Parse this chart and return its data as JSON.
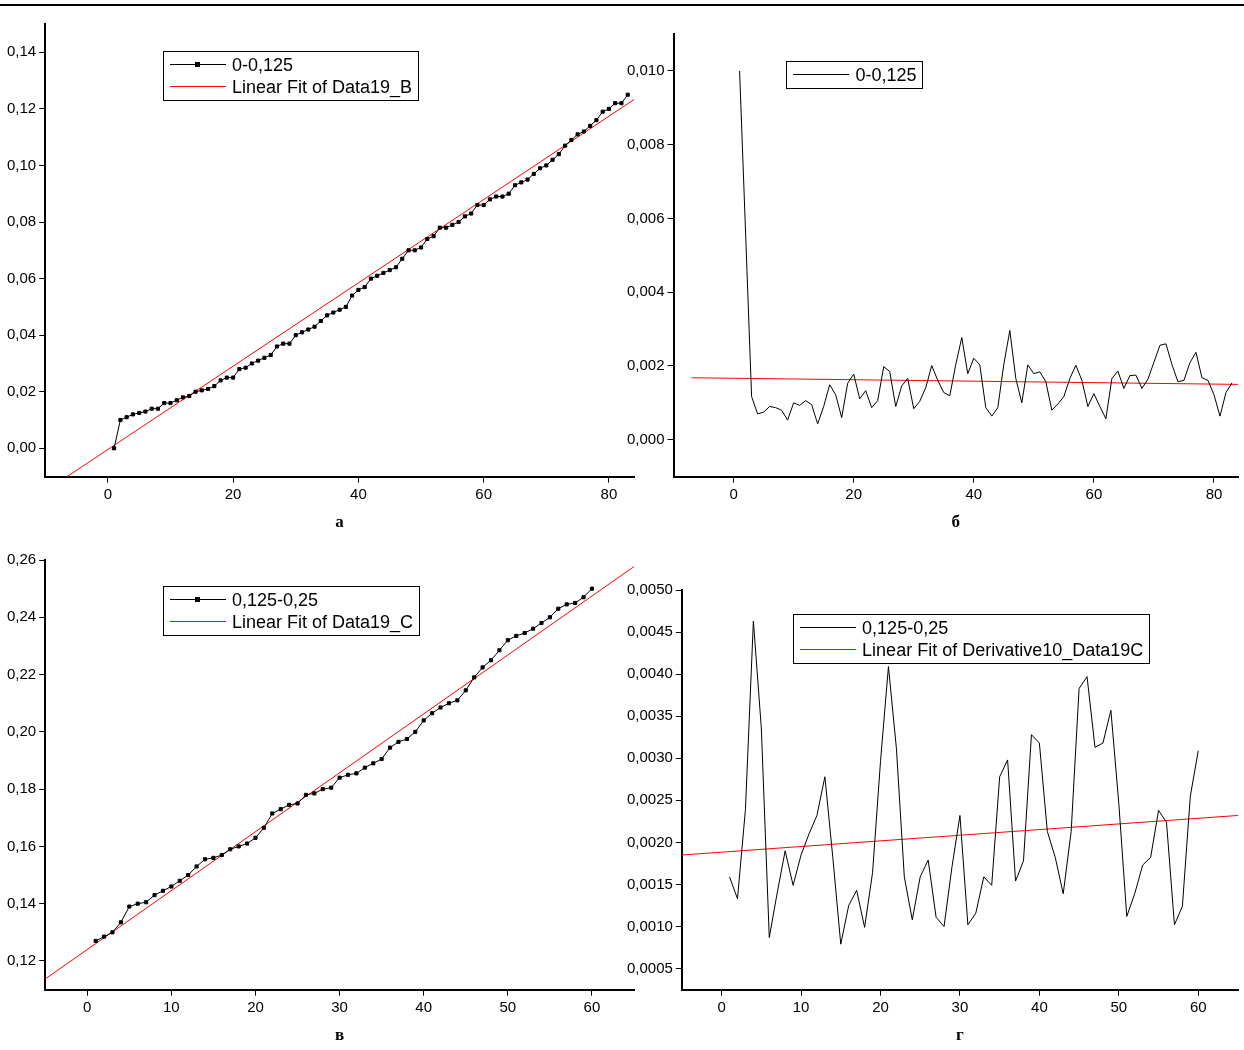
{
  "chart_data": [
    {
      "type": "line",
      "xlabel": "а",
      "xlim": [
        -10,
        84
      ],
      "xticks": [
        0,
        20,
        40,
        60,
        80
      ],
      "ylim": [
        -0.01,
        0.15
      ],
      "yticks": [
        {
          "value": 0,
          "label": "0,00"
        },
        {
          "value": 0.02,
          "label": "0,02"
        },
        {
          "value": 0.04,
          "label": "0,04"
        },
        {
          "value": 0.06,
          "label": "0,06"
        },
        {
          "value": 0.08,
          "label": "0,08"
        },
        {
          "value": 0.1,
          "label": "0,10"
        },
        {
          "value": 0.12,
          "label": "0,12"
        },
        {
          "value": 0.14,
          "label": "0,14"
        }
      ],
      "grid": false,
      "legend": "top left",
      "line_style": "solid",
      "series": [
        {
          "name": "0-0,125",
          "color": "#000000",
          "marker": "square",
          "x": [
            1,
            2,
            3,
            4,
            5,
            6,
            7,
            8,
            9,
            10,
            11,
            12,
            13,
            14,
            15,
            16,
            17,
            18,
            19,
            20,
            21,
            22,
            23,
            24,
            25,
            26,
            27,
            28,
            29,
            30,
            31,
            32,
            33,
            34,
            35,
            36,
            37,
            38,
            39,
            40,
            41,
            42,
            43,
            44,
            45,
            46,
            47,
            48,
            49,
            50,
            51,
            52,
            53,
            54,
            55,
            56,
            57,
            58,
            59,
            60,
            61,
            62,
            63,
            64,
            65,
            66,
            67,
            68,
            69,
            70,
            71,
            72,
            73,
            74,
            75,
            76,
            77,
            78,
            79,
            80,
            81,
            82,
            83
          ],
          "values": [
            0.0,
            0.01,
            0.011,
            0.012,
            0.0125,
            0.013,
            0.014,
            0.014,
            0.016,
            0.016,
            0.017,
            0.018,
            0.0185,
            0.02,
            0.0205,
            0.021,
            0.022,
            0.024,
            0.025,
            0.025,
            0.028,
            0.0285,
            0.03,
            0.031,
            0.032,
            0.033,
            0.036,
            0.037,
            0.037,
            0.04,
            0.041,
            0.042,
            0.043,
            0.045,
            0.047,
            0.048,
            0.049,
            0.05,
            0.054,
            0.056,
            0.057,
            0.06,
            0.061,
            0.062,
            0.063,
            0.064,
            0.067,
            0.07,
            0.07,
            0.071,
            0.074,
            0.075,
            0.078,
            0.078,
            0.079,
            0.08,
            0.082,
            0.083,
            0.086,
            0.086,
            0.088,
            0.089,
            0.089,
            0.09,
            0.093,
            0.094,
            0.095,
            0.097,
            0.099,
            0.1,
            0.102,
            0.104,
            0.107,
            0.109,
            0.111,
            0.112,
            0.114,
            0.116,
            0.119,
            0.12,
            0.122,
            0.122,
            0.125
          ]
        },
        {
          "name": "Linear Fit of Data19_B",
          "color": "#ff0000",
          "marker": "none",
          "x": [
            -6.5,
            84
          ],
          "values": [
            -0.01,
            0.1233
          ]
        }
      ]
    },
    {
      "type": "line",
      "xlabel": "б",
      "xlim": [
        -10,
        84
      ],
      "xticks": [
        0,
        20,
        40,
        60,
        80
      ],
      "ylim": [
        -0.001,
        0.011
      ],
      "yticks": [
        {
          "value": 0,
          "label": "0,000"
        },
        {
          "value": 0.002,
          "label": "0,002"
        },
        {
          "value": 0.004,
          "label": "0,004"
        },
        {
          "value": 0.006,
          "label": "0,006"
        },
        {
          "value": 0.008,
          "label": "0,008"
        },
        {
          "value": 0.01,
          "label": "0,010"
        }
      ],
      "grid": false,
      "legend": "top left",
      "line_style": "solid",
      "series": [
        {
          "name": "0-0,125",
          "color": "#000000",
          "marker": "none",
          "x": [
            1,
            2,
            3,
            4,
            5,
            6,
            7,
            8,
            9,
            10,
            11,
            12,
            13,
            14,
            15,
            16,
            17,
            18,
            19,
            20,
            21,
            22,
            23,
            24,
            25,
            26,
            27,
            28,
            29,
            30,
            31,
            32,
            33,
            34,
            35,
            36,
            37,
            38,
            39,
            40,
            41,
            42,
            43,
            44,
            45,
            46,
            47,
            48,
            49,
            50,
            51,
            52,
            53,
            54,
            55,
            56,
            57,
            58,
            59,
            60,
            61,
            62,
            63,
            64,
            65,
            66,
            67,
            68,
            69,
            70,
            71,
            72,
            73,
            74,
            75,
            76,
            77,
            78,
            79,
            80,
            81,
            82,
            83
          ],
          "values": [
            0.01,
            0.0056,
            0.00117,
            0.0007,
            0.00075,
            0.0009,
            0.00087,
            0.0008,
            0.00053,
            0.001,
            0.00093,
            0.00106,
            0.00095,
            0.00043,
            0.0009,
            0.00149,
            0.00122,
            0.0006,
            0.00153,
            0.00178,
            0.00111,
            0.00133,
            0.00087,
            0.00106,
            0.00198,
            0.00185,
            0.0009,
            0.00146,
            0.00166,
            0.00084,
            0.00104,
            0.00141,
            0.00201,
            0.00161,
            0.00128,
            0.00119,
            0.00204,
            0.00277,
            0.00179,
            0.00221,
            0.00203,
            0.00087,
            0.00064,
            0.00087,
            0.00204,
            0.00296,
            0.00166,
            0.001,
            0.00203,
            0.00179,
            0.00184,
            0.00157,
            0.0008,
            0.00097,
            0.00117,
            0.00166,
            0.00202,
            0.00161,
            0.0009,
            0.00125,
            0.0009,
            0.00057,
            0.00166,
            0.00186,
            0.00139,
            0.00174,
            0.00175,
            0.00139,
            0.00164,
            0.0021,
            0.00256,
            0.0026,
            0.00204,
            0.00157,
            0.00161,
            0.00209,
            0.00237,
            0.00168,
            0.00161,
            0.00122,
            0.00064,
            0.00128,
            0.00154
          ]
        },
        {
          "color": "#ff0000",
          "marker": "none",
          "x": [
            -7,
            84
          ],
          "values": [
            0.00168,
            0.0015
          ]
        }
      ]
    },
    {
      "type": "line",
      "xlabel": "в",
      "xlim": [
        -5,
        65
      ],
      "xticks": [
        0,
        10,
        20,
        30,
        40,
        50,
        60
      ],
      "ylim": [
        0.11,
        0.26
      ],
      "yticks": [
        {
          "value": 0.12,
          "label": "0,12"
        },
        {
          "value": 0.14,
          "label": "0,14"
        },
        {
          "value": 0.16,
          "label": "0,16"
        },
        {
          "value": 0.18,
          "label": "0,18"
        },
        {
          "value": 0.2,
          "label": "0,20"
        },
        {
          "value": 0.22,
          "label": "0,22"
        },
        {
          "value": 0.24,
          "label": "0,24"
        },
        {
          "value": 0.26,
          "label": "0,26"
        }
      ],
      "grid": false,
      "legend": "top left",
      "line_style": "solid",
      "series": [
        {
          "name": "0,125-0,25",
          "color": "#000000",
          "marker": "square",
          "x": [
            1,
            2,
            3,
            4,
            5,
            6,
            7,
            8,
            9,
            10,
            11,
            12,
            13,
            14,
            15,
            16,
            17,
            18,
            19,
            20,
            21,
            22,
            23,
            24,
            25,
            26,
            27,
            28,
            29,
            30,
            31,
            32,
            33,
            34,
            35,
            36,
            37,
            38,
            39,
            40,
            41,
            42,
            43,
            44,
            45,
            46,
            47,
            48,
            49,
            50,
            51,
            52,
            53,
            54,
            55,
            56,
            57,
            58,
            59,
            60
          ],
          "values": [
            0.127,
            0.1285,
            0.13,
            0.1335,
            0.139,
            0.14,
            0.1405,
            0.143,
            0.1445,
            0.146,
            0.148,
            0.15,
            0.153,
            0.1555,
            0.156,
            0.157,
            0.159,
            0.16,
            0.161,
            0.163,
            0.1665,
            0.1715,
            0.173,
            0.1745,
            0.175,
            0.178,
            0.1785,
            0.18,
            0.1805,
            0.184,
            0.185,
            0.1855,
            0.1875,
            0.189,
            0.1905,
            0.1945,
            0.1965,
            0.1975,
            0.2,
            0.204,
            0.2065,
            0.2085,
            0.21,
            0.211,
            0.2145,
            0.219,
            0.2225,
            0.225,
            0.2285,
            0.232,
            0.2335,
            0.2345,
            0.236,
            0.238,
            0.24,
            0.243,
            0.2445,
            0.245,
            0.247,
            0.25
          ]
        },
        {
          "name": "Linear Fit of Data19_C",
          "color": "#ff0000",
          "marker": "none",
          "x": [
            -5,
            65
          ],
          "values": [
            0.1137,
            0.2577
          ]
        }
      ]
    },
    {
      "type": "line",
      "xlabel": "г",
      "xlim": [
        -5,
        65
      ],
      "xticks": [
        0,
        10,
        20,
        30,
        40,
        50,
        60
      ],
      "ylim": [
        0.00025,
        0.005
      ],
      "yticks": [
        {
          "value": 0.0005,
          "label": "0,0005"
        },
        {
          "value": 0.001,
          "label": "0,0010"
        },
        {
          "value": 0.0015,
          "label": "0,0015"
        },
        {
          "value": 0.002,
          "label": "0,0020"
        },
        {
          "value": 0.0025,
          "label": "0,0025"
        },
        {
          "value": 0.003,
          "label": "0,0030"
        },
        {
          "value": 0.0035,
          "label": "0,0035"
        },
        {
          "value": 0.004,
          "label": "0,0040"
        },
        {
          "value": 0.0045,
          "label": "0,0045"
        },
        {
          "value": 0.005,
          "label": "0,0050"
        }
      ],
      "grid": false,
      "legend": "top left",
      "line_style": "solid",
      "series": [
        {
          "name": "0,125-0,25",
          "color": "#000000",
          "marker": "none",
          "x": [
            1,
            2,
            3,
            4,
            5,
            6,
            7,
            8,
            9,
            10,
            11,
            12,
            13,
            14,
            15,
            16,
            17,
            18,
            19,
            20,
            21,
            22,
            23,
            24,
            25,
            26,
            27,
            28,
            29,
            30,
            31,
            32,
            33,
            34,
            35,
            36,
            37,
            38,
            39,
            40,
            41,
            42,
            43,
            44,
            45,
            46,
            47,
            48,
            49,
            50,
            51,
            52,
            53,
            54,
            55,
            56,
            57,
            58,
            59,
            60
          ],
          "values": [
            0.00159,
            0.00133,
            0.00239,
            0.00463,
            0.00336,
            0.00087,
            0.0014,
            0.0019,
            0.00149,
            0.00185,
            0.0021,
            0.00232,
            0.00278,
            0.00182,
            0.00079,
            0.00125,
            0.00143,
            0.00099,
            0.00164,
            0.00296,
            0.00409,
            0.00312,
            0.00159,
            0.00108,
            0.00159,
            0.00179,
            0.00111,
            0.001,
            0.00171,
            0.00232,
            0.00102,
            0.00116,
            0.00159,
            0.00149,
            0.00278,
            0.00298,
            0.00154,
            0.00178,
            0.00328,
            0.00318,
            0.00213,
            0.00182,
            0.00139,
            0.00213,
            0.00383,
            0.00397,
            0.00313,
            0.00318,
            0.00357,
            0.00246,
            0.00112,
            0.00139,
            0.00173,
            0.00182,
            0.00238,
            0.00224,
            0.00102,
            0.00124,
            0.00255,
            0.00309
          ]
        },
        {
          "name": "Linear Fit of Derivative10_Data19C",
          "color": "#ff0000",
          "marker": "none",
          "x": [
            -5,
            65
          ],
          "values": [
            0.00185,
            0.00232
          ]
        }
      ]
    }
  ]
}
